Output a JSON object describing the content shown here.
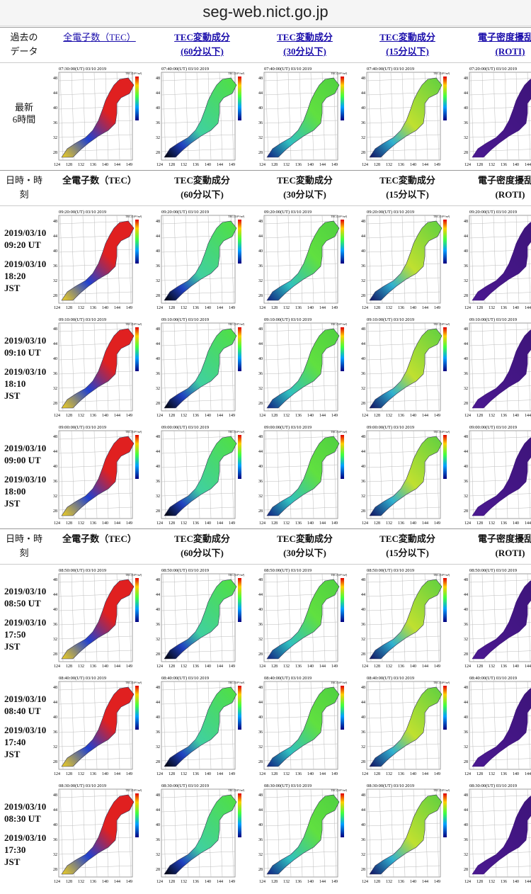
{
  "address": "seg-web.nict.go.jp",
  "map_labels": {
    "colorbar": "TEC (10¹⁶/m²)",
    "lat": [
      "48",
      "44",
      "40",
      "36",
      "32",
      "28"
    ],
    "lon": [
      "124",
      "128",
      "132",
      "136",
      "140",
      "144",
      "149"
    ]
  },
  "sections": [
    {
      "header": {
        "first": [
          "過去の",
          "データ"
        ],
        "columns": [
          [
            "全電子数（TEC）"
          ],
          [
            "TEC変動成分",
            "(60分以下)"
          ],
          [
            "TEC変動成分",
            "(30分以下)"
          ],
          [
            "TEC変動成分",
            "(15分以下)"
          ],
          [
            "電子密度擾乱指",
            "(ROTI)"
          ]
        ],
        "links": true
      },
      "rows": [
        {
          "label": [
            "最新",
            "6時間"
          ],
          "maps": [
            "07:30:00(UT) 03/10 2019",
            "07:40:00(UT) 03/10 2019",
            "07:40:00(UT) 03/10 2019",
            "07:40:00(UT) 03/10 2019",
            "07:20:00(UT) 03/10 2019"
          ]
        }
      ]
    },
    {
      "header": {
        "first": [
          "日時・時",
          "刻"
        ],
        "columns": [
          [
            "全電子数（TEC）"
          ],
          [
            "TEC変動成分",
            "(60分以下)"
          ],
          [
            "TEC変動成分",
            "(30分以下)"
          ],
          [
            "TEC変動成分",
            "(15分以下)"
          ],
          [
            "電子密度擾乱指",
            "(ROTI)"
          ]
        ],
        "links": false
      },
      "rows": [
        {
          "label": [
            "2019/03/10",
            "09:20 UT",
            "2019/03/10",
            "18:20",
            "JST"
          ],
          "maps": [
            "09:20:00(UT) 03/10 2019",
            "09:20:00(UT) 03/10 2019",
            "09:20:00(UT) 03/10 2019",
            "09:20:00(UT) 03/10 2019",
            "09:20:00(UT) 03/10 2019"
          ]
        },
        {
          "label": [
            "2019/03/10",
            "09:10 UT",
            "2019/03/10",
            "18:10",
            "JST"
          ],
          "maps": [
            "09:10:00(UT) 03/10 2019",
            "09:10:00(UT) 03/10 2019",
            "09:10:00(UT) 03/10 2019",
            "09:10:00(UT) 03/10 2019",
            "09:10:00(UT) 03/10 2019"
          ]
        },
        {
          "label": [
            "2019/03/10",
            "09:00 UT",
            "2019/03/10",
            "18:00",
            "JST"
          ],
          "maps": [
            "09:00:00(UT) 03/10 2019",
            "09:00:00(UT) 03/10 2019",
            "09:00:00(UT) 03/10 2019",
            "09:00:00(UT) 03/10 2019",
            "09:00:00(UT) 03/10 2019"
          ]
        }
      ]
    },
    {
      "header": {
        "first": [
          "日時・時",
          "刻"
        ],
        "columns": [
          [
            "全電子数（TEC）"
          ],
          [
            "TEC変動成分",
            "(60分以下)"
          ],
          [
            "TEC変動成分",
            "(30分以下)"
          ],
          [
            "TEC変動成分",
            "(15分以下)"
          ],
          [
            "電子密度擾乱指",
            "(ROTI)"
          ]
        ],
        "links": false
      },
      "rows": [
        {
          "label": [
            "2019/03/10",
            "08:50 UT",
            "2019/03/10",
            "17:50",
            "JST"
          ],
          "maps": [
            "08:50:00(UT) 03/10 2019",
            "08:50:00(UT) 03/10 2019",
            "08:50:00(UT) 03/10 2019",
            "08:50:00(UT) 03/10 2019",
            "08:50:00(UT) 03/10 2019"
          ]
        },
        {
          "label": [
            "2019/03/10",
            "08:40 UT",
            "2019/03/10",
            "17:40",
            "JST"
          ],
          "maps": [
            "08:40:00(UT) 03/10 2019",
            "08:40:00(UT) 03/10 2019",
            "08:40:00(UT) 03/10 2019",
            "08:40:00(UT) 03/10 2019",
            "08:40:00(UT) 03/10 2019"
          ]
        },
        {
          "label": [
            "2019/03/10",
            "08:30 UT",
            "2019/03/10",
            "17:30",
            "JST"
          ],
          "maps": [
            "08:30:00(UT) 03/10 2019",
            "08:30:00(UT) 03/10 2019",
            "08:30:00(UT) 03/10 2019",
            "08:30:00(UT) 03/10 2019",
            "08:30:00(UT) 03/10 2019"
          ]
        }
      ]
    }
  ]
}
